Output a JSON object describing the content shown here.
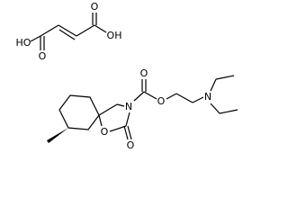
{
  "atoms": [
    {
      "label": "HO"
    },
    {
      "label": "O"
    },
    {
      "label": "O"
    },
    {
      "label": "OH"
    },
    {
      "label": "O"
    },
    {
      "label": "O"
    },
    {
      "label": "N"
    },
    {
      "label": "O"
    },
    {
      "label": "O"
    },
    {
      "label": "N"
    }
  ]
}
